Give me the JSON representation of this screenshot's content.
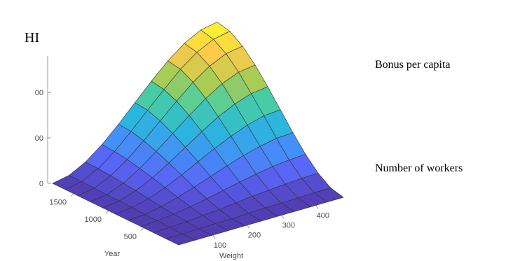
{
  "chart_data": {
    "type": "surface",
    "zlabel": "HI",
    "xlabel": "Weight",
    "ylabel": "Year",
    "annotations": [
      "Bonus per capita",
      "Number of workers"
    ],
    "colormap": "parula",
    "x": [
      0,
      48,
      96,
      144,
      192,
      240,
      288,
      336,
      384,
      432,
      480
    ],
    "y": [
      0,
      180,
      360,
      540,
      720,
      900,
      1080,
      1260,
      1440,
      1620,
      1800
    ],
    "z": [
      [
        0,
        0,
        0,
        0,
        0,
        0,
        0,
        0,
        0,
        0,
        0
      ],
      [
        0,
        0,
        1,
        2,
        2,
        4,
        5,
        5,
        6,
        7,
        7
      ],
      [
        0,
        1,
        3,
        6,
        9,
        13,
        17,
        20,
        23,
        25,
        26
      ],
      [
        0,
        2,
        6,
        12,
        19,
        27,
        35,
        42,
        48,
        52,
        54
      ],
      [
        0,
        2,
        9,
        19,
        31,
        44,
        57,
        69,
        79,
        86,
        88
      ],
      [
        0,
        4,
        13,
        27,
        44,
        63,
        81,
        98,
        112,
        122,
        125
      ],
      [
        0,
        5,
        17,
        35,
        57,
        81,
        105,
        127,
        145,
        157,
        162
      ],
      [
        0,
        5,
        20,
        42,
        69,
        98,
        127,
        154,
        176,
        191,
        196
      ],
      [
        0,
        6,
        23,
        48,
        79,
        112,
        145,
        176,
        201,
        218,
        224
      ],
      [
        0,
        7,
        25,
        52,
        86,
        122,
        157,
        191,
        218,
        236,
        243
      ],
      [
        0,
        7,
        26,
        54,
        88,
        125,
        162,
        196,
        224,
        243,
        250
      ]
    ],
    "xlim": [
      0,
      480
    ],
    "ylim": [
      0,
      1800
    ],
    "zlim": [
      0,
      280
    ],
    "xticks": [
      100,
      200,
      300,
      400
    ],
    "yticks": [
      500,
      1000,
      1500
    ],
    "zticks": [
      0,
      {
        "value": 100,
        "label": "00"
      },
      {
        "value": 200,
        "label": "00"
      }
    ]
  }
}
